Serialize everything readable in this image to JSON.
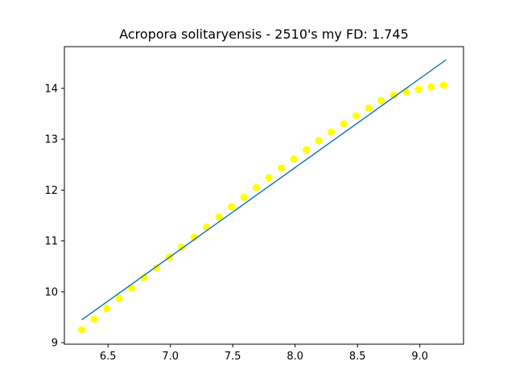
{
  "chart_data": {
    "type": "scatter",
    "title": "Acropora solitaryensis - 2510's my FD: 1.745",
    "xlabel": "",
    "ylabel": "",
    "xlim": [
      6.15,
      9.35
    ],
    "ylim": [
      8.97,
      14.82
    ],
    "x_ticks": [
      6.5,
      7.0,
      7.5,
      8.0,
      8.5,
      9.0
    ],
    "x_tick_labels": [
      "6.5",
      "7.0",
      "7.5",
      "8.0",
      "8.5",
      "9.0"
    ],
    "y_ticks": [
      9,
      10,
      11,
      12,
      13,
      14
    ],
    "y_tick_labels": [
      "9",
      "10",
      "11",
      "12",
      "13",
      "14"
    ],
    "grid": false,
    "series": [
      {
        "kind": "scatter",
        "color": "#ffff00",
        "x": [
          6.29,
          6.39,
          6.49,
          6.59,
          6.69,
          6.79,
          6.89,
          6.99,
          7.09,
          7.19,
          7.29,
          7.39,
          7.49,
          7.59,
          7.69,
          7.79,
          7.89,
          7.99,
          8.09,
          8.19,
          8.29,
          8.39,
          8.49,
          8.59,
          8.69,
          8.79,
          8.89,
          8.99,
          9.09,
          9.19
        ],
        "y": [
          9.25,
          9.46,
          9.67,
          9.87,
          10.07,
          10.28,
          10.47,
          10.68,
          10.88,
          11.07,
          11.27,
          11.47,
          11.67,
          11.86,
          12.05,
          12.24,
          12.43,
          12.61,
          12.79,
          12.97,
          13.14,
          13.3,
          13.46,
          13.61,
          13.76,
          13.87,
          13.93,
          13.98,
          14.03,
          14.06
        ]
      },
      {
        "kind": "line",
        "color": "#1f77b4",
        "x": [
          6.29,
          9.21
        ],
        "y": [
          9.45,
          14.56
        ]
      }
    ]
  }
}
